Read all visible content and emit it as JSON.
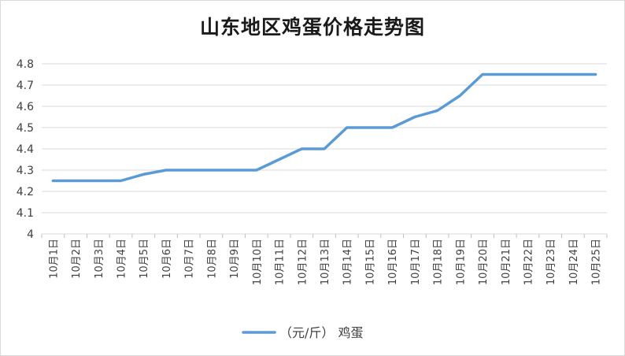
{
  "chart_data": {
    "type": "line",
    "title": "山东地区鸡蛋价格走势图",
    "xlabel": "",
    "ylabel": "",
    "ylim": [
      4,
      4.8
    ],
    "yticks": [
      "4",
      "4.1",
      "4.2",
      "4.3",
      "4.4",
      "4.5",
      "4.6",
      "4.7",
      "4.8"
    ],
    "categories": [
      "10月1日",
      "10月2日",
      "10月3日",
      "10月4日",
      "10月5日",
      "10月6日",
      "10月7日",
      "10月8日",
      "10月9日",
      "10月10日",
      "10月11日",
      "10月12日",
      "10月13日",
      "10月14日",
      "10月15日",
      "10月16日",
      "10月17日",
      "10月18日",
      "10月19日",
      "10月20日",
      "10月21日",
      "10月22日",
      "10月23日",
      "10月24日",
      "10月25日"
    ],
    "series": [
      {
        "name": "（元/斤） 鸡蛋",
        "color": "#5b9bd5",
        "values": [
          4.25,
          4.25,
          4.25,
          4.25,
          4.28,
          4.3,
          4.3,
          4.3,
          4.3,
          4.3,
          4.35,
          4.4,
          4.4,
          4.5,
          4.5,
          4.5,
          4.55,
          4.58,
          4.65,
          4.75,
          4.75,
          4.75,
          4.75,
          4.75,
          4.75
        ]
      }
    ],
    "grid": true,
    "legend": "bottom"
  }
}
